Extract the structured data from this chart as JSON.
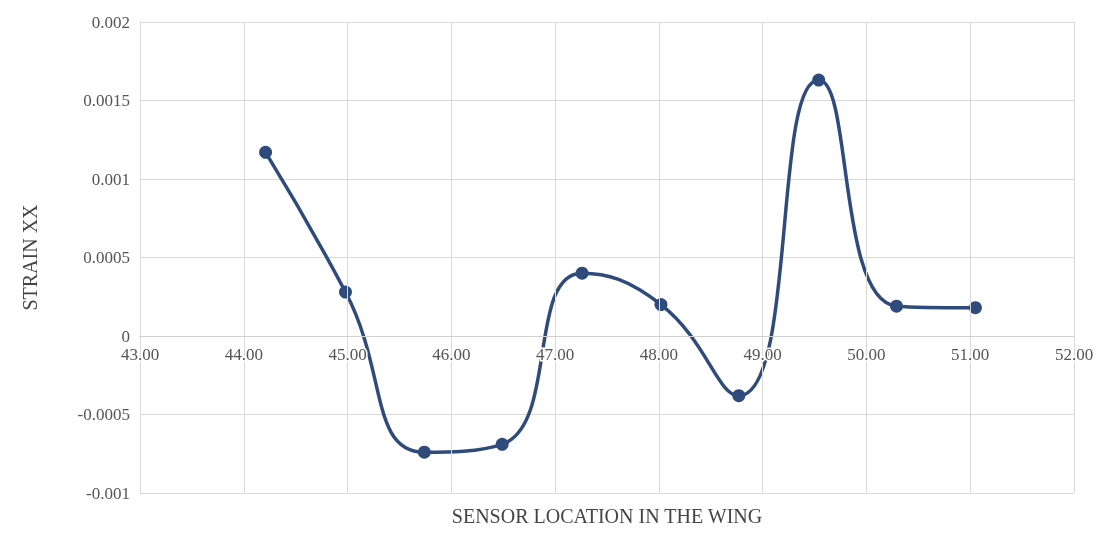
{
  "chart_data": {
    "type": "line",
    "xlabel": "SENSOR LOCATION IN THE WING",
    "ylabel": "STRAIN XX",
    "x": [
      44.21,
      44.98,
      45.74,
      46.49,
      47.26,
      48.02,
      48.77,
      49.54,
      50.29,
      51.05
    ],
    "series": [
      {
        "color": "#2f4b7c",
        "values": [
          0.00117,
          0.00028,
          -0.00074,
          -0.00069,
          0.0004,
          0.0002,
          -0.00038,
          0.00163,
          0.00019,
          0.00018
        ]
      }
    ],
    "xlim": [
      43,
      52
    ],
    "xticks": [
      {
        "value": 43,
        "label": "43.00"
      },
      {
        "value": 44,
        "label": "44.00"
      },
      {
        "value": 45,
        "label": "45.00"
      },
      {
        "value": 46,
        "label": "46.00"
      },
      {
        "value": 47,
        "label": "47.00"
      },
      {
        "value": 48,
        "label": "48.00"
      },
      {
        "value": 49,
        "label": "49.00"
      },
      {
        "value": 50,
        "label": "50.00"
      },
      {
        "value": 51,
        "label": "51.00"
      },
      {
        "value": 52,
        "label": "52.00"
      }
    ],
    "ylim": [
      -0.001,
      0.002
    ],
    "yticks": [
      -0.001,
      -0.0005,
      0,
      0.0005,
      0.001,
      0.0015,
      0.002
    ],
    "grid": true,
    "marker": "circle",
    "line_style": "solid"
  }
}
